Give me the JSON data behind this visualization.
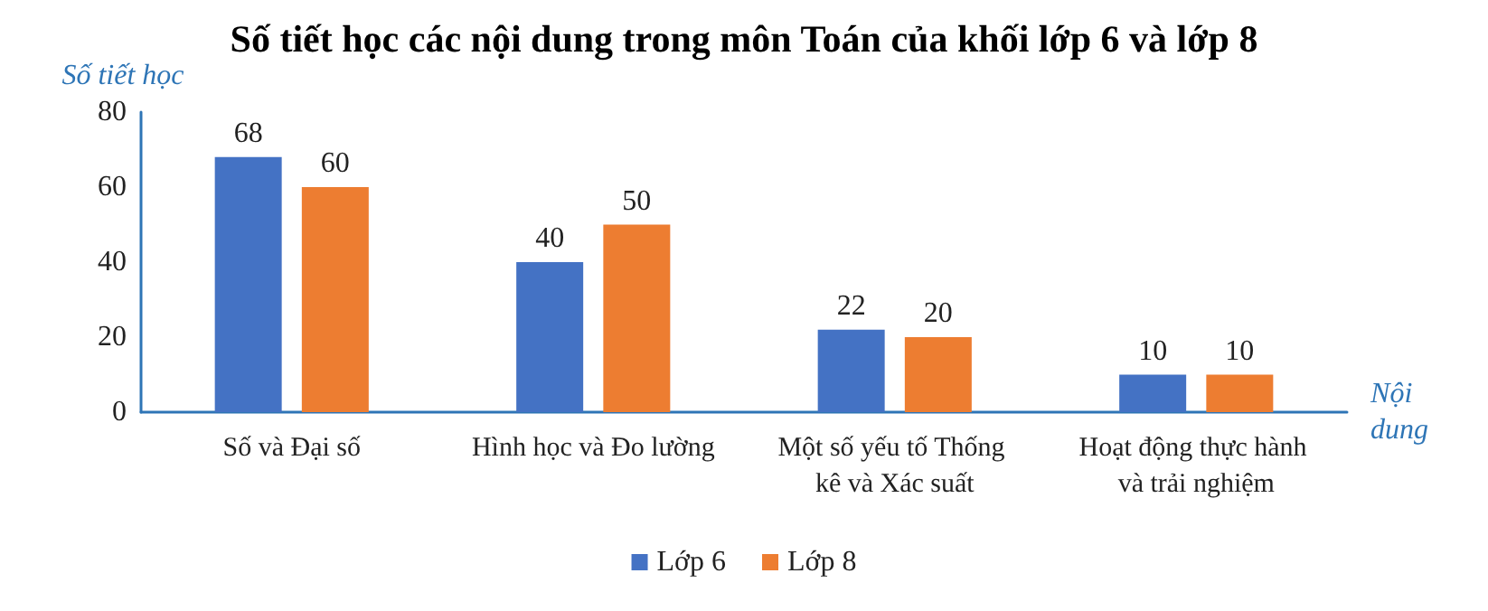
{
  "chart_data": {
    "type": "bar",
    "title": "Số tiết học các nội dung trong môn Toán của khối lớp 6 và lớp 8",
    "xlabel": "Nội dung",
    "ylabel": "Số tiết học",
    "categories": [
      "Số và Đại số",
      "Hình học và Đo lường",
      "Một số yếu tố Thống kê và Xác suất",
      "Hoạt động thực hành và trải nghiệm"
    ],
    "series": [
      {
        "name": "Lớp 6",
        "color": "#4472c4",
        "values": [
          68,
          40,
          22,
          10
        ]
      },
      {
        "name": "Lớp 8",
        "color": "#ed7d31",
        "values": [
          60,
          50,
          20,
          10
        ]
      }
    ],
    "ylim": [
      0,
      80
    ],
    "yticks": [
      0,
      20,
      40,
      60,
      80
    ],
    "grid": false,
    "legend": "bottom",
    "data_labels": true
  }
}
